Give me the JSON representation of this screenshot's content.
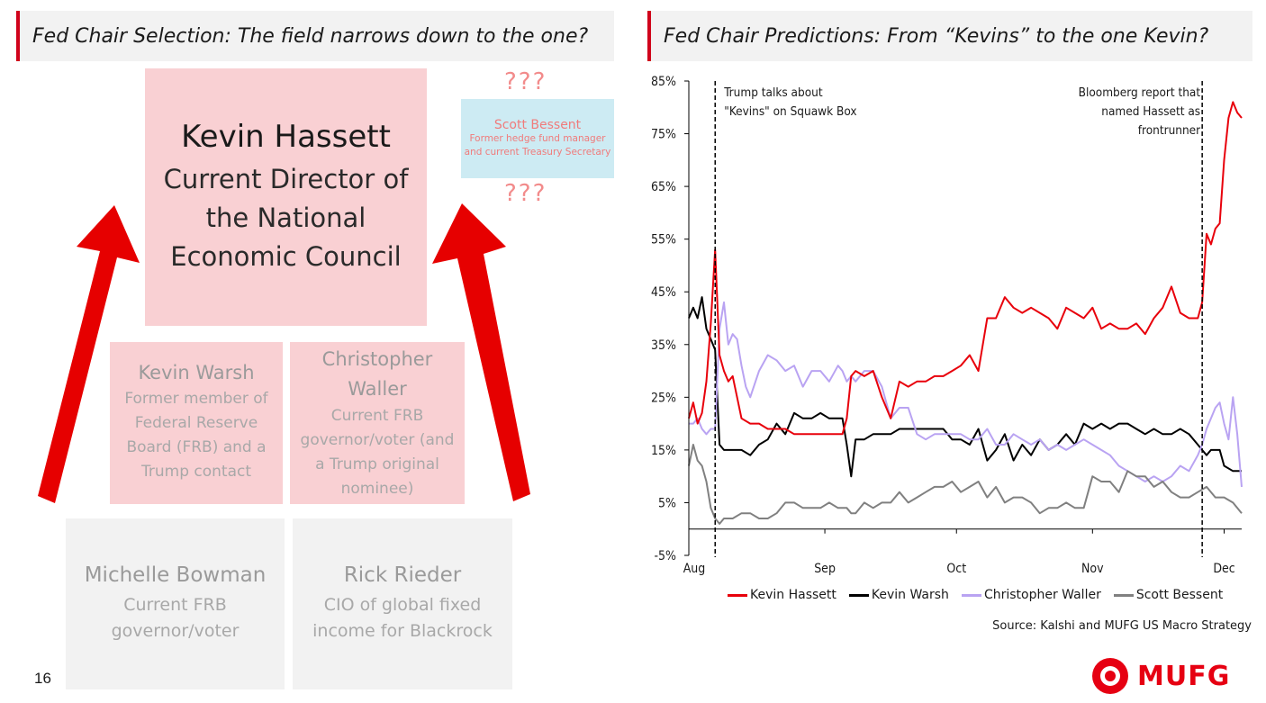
{
  "left_panel": {
    "title": "Fed Chair Selection: The field narrows down to the one?",
    "question_marks": "???",
    "frontrunner": {
      "name": "Kevin Hassett",
      "desc": "Current Director of the National Economic Council"
    },
    "bessent": {
      "name": "Scott Bessent",
      "desc": "Former hedge fund manager and current Treasury Secretary"
    },
    "warsh": {
      "name": "Kevin Warsh",
      "desc": "Former member of Federal Reserve Board (FRB) and a Trump contact"
    },
    "waller": {
      "name": "Christopher Waller",
      "desc": "Current FRB governor/voter (and a Trump original nominee)"
    },
    "bowman": {
      "name": "Michelle Bowman",
      "desc": "Current FRB governor/voter"
    },
    "rieder": {
      "name": "Rick Rieder",
      "desc": "CIO of global fixed income for Blackrock"
    },
    "page_number": "16"
  },
  "right_panel": {
    "title": "Fed Chair Predictions: From “Kevins” to the one Kevin?",
    "source": "Source: Kalshi and MUFG US Macro Strategy",
    "logo_text": "MUFG"
  },
  "colors": {
    "hassett": "#e8000b",
    "warsh": "#000000",
    "waller": "#b9a3f2",
    "bessent": "#808080",
    "accent": "#d0021b"
  },
  "chart_data": {
    "type": "line",
    "xlabel": "",
    "ylabel": "",
    "x_tick_labels": [
      "Aug",
      "Sep",
      "Oct",
      "Nov",
      "Dec"
    ],
    "y_tick_labels": [
      "-5%",
      "5%",
      "15%",
      "25%",
      "35%",
      "45%",
      "55%",
      "65%",
      "75%",
      "85%"
    ],
    "y_ticks": [
      -5,
      5,
      15,
      25,
      35,
      45,
      55,
      65,
      75,
      85
    ],
    "ylim": [
      -5,
      85
    ],
    "x_unit": "days since Aug 1",
    "xlim": [
      0,
      126
    ],
    "month_tick_days": [
      0,
      31,
      61,
      92,
      122
    ],
    "annotations": [
      {
        "day": 6,
        "text_lines": [
          "Trump talks about",
          "\"Kevins\" on Squawk Box"
        ]
      },
      {
        "day": 117,
        "text_lines": [
          "Bloomberg report that",
          "named Hassett as",
          "frontrunner"
        ]
      }
    ],
    "series": [
      {
        "name": "Kevin Hassett",
        "color": "#e8000b",
        "x": [
          0,
          1,
          2,
          3,
          4,
          5,
          6,
          7,
          8,
          9,
          10,
          11,
          12,
          14,
          16,
          18,
          20,
          22,
          24,
          26,
          28,
          30,
          32,
          34,
          35,
          36,
          37,
          38,
          40,
          42,
          44,
          46,
          48,
          50,
          52,
          54,
          56,
          58,
          60,
          62,
          64,
          66,
          68,
          70,
          72,
          74,
          76,
          78,
          80,
          82,
          84,
          86,
          88,
          90,
          92,
          94,
          96,
          98,
          100,
          102,
          104,
          106,
          108,
          110,
          112,
          114,
          116,
          117,
          118,
          119,
          120,
          121,
          122,
          123,
          124,
          125,
          126
        ],
        "values": [
          21,
          24,
          20,
          22,
          28,
          39,
          53,
          33,
          30,
          28,
          29,
          25,
          21,
          20,
          20,
          19,
          19,
          19,
          18,
          18,
          18,
          18,
          18,
          18,
          18,
          21,
          29,
          30,
          29,
          30,
          25,
          21,
          28,
          27,
          28,
          28,
          29,
          29,
          30,
          31,
          33,
          30,
          40,
          40,
          44,
          42,
          41,
          42,
          41,
          40,
          38,
          42,
          41,
          40,
          42,
          38,
          39,
          38,
          38,
          39,
          37,
          40,
          42,
          46,
          41,
          40,
          40,
          43,
          56,
          54,
          57,
          58,
          70,
          78,
          81,
          79,
          78
        ]
      },
      {
        "name": "Kevin Warsh",
        "color": "#000000",
        "x": [
          0,
          1,
          2,
          3,
          4,
          5,
          6,
          7,
          8,
          10,
          12,
          14,
          16,
          18,
          20,
          22,
          24,
          26,
          28,
          30,
          32,
          34,
          35,
          36,
          37,
          38,
          40,
          42,
          44,
          46,
          48,
          50,
          52,
          54,
          56,
          58,
          60,
          62,
          64,
          66,
          68,
          70,
          72,
          74,
          76,
          78,
          80,
          82,
          84,
          86,
          88,
          90,
          92,
          94,
          96,
          98,
          100,
          102,
          104,
          106,
          108,
          110,
          112,
          114,
          116,
          117,
          118,
          119,
          120,
          121,
          122,
          124,
          126
        ],
        "values": [
          40,
          42,
          40,
          44,
          38,
          36,
          34,
          16,
          15,
          15,
          15,
          14,
          16,
          17,
          20,
          18,
          22,
          21,
          21,
          22,
          21,
          21,
          21,
          16,
          10,
          17,
          17,
          18,
          18,
          18,
          19,
          19,
          19,
          19,
          19,
          19,
          17,
          17,
          16,
          19,
          13,
          15,
          18,
          13,
          16,
          14,
          17,
          15,
          16,
          18,
          16,
          20,
          19,
          20,
          19,
          20,
          20,
          19,
          18,
          19,
          18,
          18,
          19,
          18,
          16,
          15,
          14,
          15,
          15,
          15,
          12,
          11,
          11
        ]
      },
      {
        "name": "Christopher Waller",
        "color": "#b9a3f2",
        "x": [
          0,
          1,
          2,
          3,
          4,
          5,
          6,
          7,
          8,
          9,
          10,
          11,
          12,
          13,
          14,
          16,
          18,
          20,
          22,
          24,
          26,
          28,
          30,
          32,
          34,
          35,
          36,
          37,
          38,
          40,
          42,
          44,
          46,
          48,
          50,
          52,
          54,
          56,
          58,
          60,
          62,
          64,
          66,
          68,
          70,
          72,
          74,
          76,
          78,
          80,
          82,
          84,
          86,
          88,
          90,
          92,
          94,
          96,
          98,
          100,
          102,
          104,
          106,
          108,
          110,
          112,
          114,
          116,
          117,
          118,
          119,
          120,
          121,
          122,
          123,
          124,
          125,
          126
        ],
        "values": [
          20,
          20,
          21,
          19,
          18,
          19,
          19,
          38,
          43,
          35,
          37,
          36,
          31,
          27,
          25,
          30,
          33,
          32,
          30,
          31,
          27,
          30,
          30,
          28,
          31,
          30,
          28,
          29,
          28,
          30,
          30,
          27,
          21,
          23,
          23,
          18,
          17,
          18,
          18,
          18,
          18,
          17,
          17,
          19,
          16,
          16,
          18,
          17,
          16,
          17,
          15,
          16,
          15,
          16,
          17,
          16,
          15,
          14,
          12,
          11,
          10,
          9,
          10,
          9,
          10,
          12,
          11,
          14,
          16,
          19,
          21,
          23,
          24,
          20,
          17,
          25,
          18,
          8
        ]
      },
      {
        "name": "Scott Bessent",
        "color": "#808080",
        "x": [
          0,
          1,
          2,
          3,
          4,
          5,
          6,
          7,
          8,
          10,
          12,
          14,
          16,
          18,
          20,
          22,
          24,
          26,
          28,
          30,
          32,
          34,
          35,
          36,
          37,
          38,
          40,
          42,
          44,
          46,
          48,
          50,
          52,
          54,
          56,
          58,
          60,
          62,
          64,
          66,
          68,
          70,
          72,
          74,
          76,
          78,
          80,
          82,
          84,
          86,
          88,
          90,
          92,
          94,
          96,
          98,
          100,
          102,
          104,
          106,
          108,
          110,
          112,
          114,
          116,
          118,
          120,
          122,
          124,
          126
        ],
        "values": [
          12,
          16,
          13,
          12,
          9,
          4,
          2,
          1,
          2,
          2,
          3,
          3,
          2,
          2,
          3,
          5,
          5,
          4,
          4,
          4,
          5,
          4,
          4,
          4,
          3,
          3,
          5,
          4,
          5,
          5,
          7,
          5,
          6,
          7,
          8,
          8,
          9,
          7,
          8,
          9,
          6,
          8,
          5,
          6,
          6,
          5,
          3,
          4,
          4,
          5,
          4,
          4,
          10,
          9,
          9,
          7,
          11,
          10,
          10,
          8,
          9,
          7,
          6,
          6,
          7,
          8,
          6,
          6,
          5,
          3
        ]
      }
    ]
  }
}
